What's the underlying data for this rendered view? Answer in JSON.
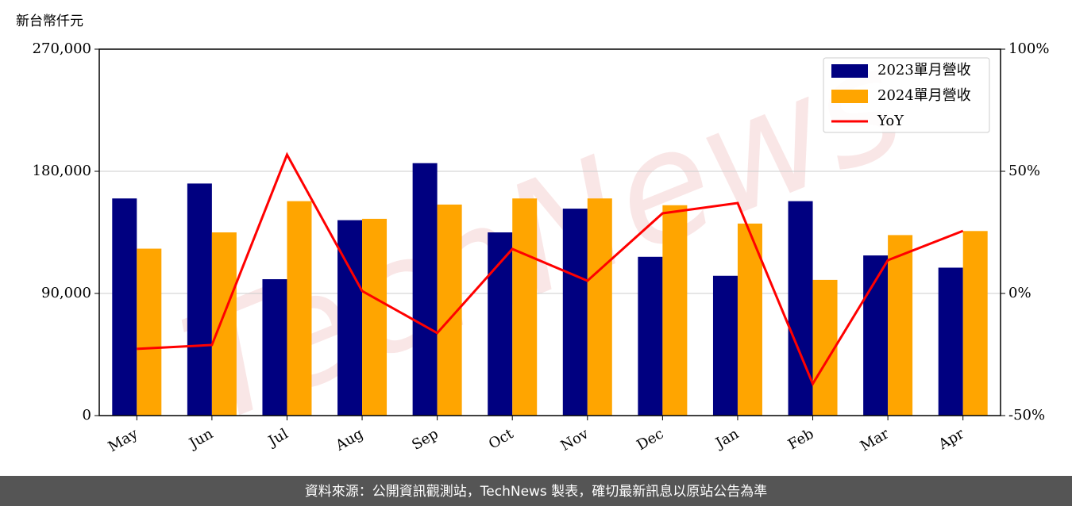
{
  "chart_data": {
    "type": "bar-line",
    "y_label": "新台幣仟元",
    "watermark": "TechNews",
    "source": "資料來源：公開資訊觀測站，TechNews 製表，確切最新訊息以原站公告為準",
    "categories": [
      "May",
      "Jun",
      "Jul",
      "Aug",
      "Sep",
      "Oct",
      "Nov",
      "Dec",
      "Jan",
      "Feb",
      "Mar",
      "Apr"
    ],
    "series": [
      {
        "name": "2023單月營收",
        "type": "bar",
        "color": "#000080",
        "values": [
          160000,
          171000,
          100500,
          144000,
          186000,
          135000,
          152500,
          117000,
          103000,
          158000,
          118000,
          109000
        ]
      },
      {
        "name": "2024單月營收",
        "type": "bar",
        "color": "#ffa500",
        "values": [
          123000,
          135000,
          158000,
          145000,
          155500,
          160000,
          160000,
          155000,
          141500,
          100000,
          133000,
          136000
        ]
      },
      {
        "name": "YoY",
        "type": "line",
        "axis": "y2",
        "color": "#ff0000",
        "values": [
          -22.7,
          -21.1,
          56.8,
          1.0,
          -16.2,
          18.2,
          5.2,
          32.8,
          37.0,
          -37.0,
          13.6,
          25.6
        ]
      }
    ],
    "ylim": [
      0,
      270000
    ],
    "yticks": [
      {
        "value": 0,
        "label": "0"
      },
      {
        "value": 90000,
        "label": "90,000"
      },
      {
        "value": 180000,
        "label": "180,000"
      },
      {
        "value": 270000,
        "label": "270,000"
      }
    ],
    "y2lim": [
      -50,
      100
    ],
    "y2ticks": [
      {
        "value": -50,
        "label": "-50%"
      },
      {
        "value": 0,
        "label": "0%"
      },
      {
        "value": 50,
        "label": "50%"
      },
      {
        "value": 100,
        "label": "100%"
      }
    ],
    "grid": true,
    "legend": "upper right"
  }
}
